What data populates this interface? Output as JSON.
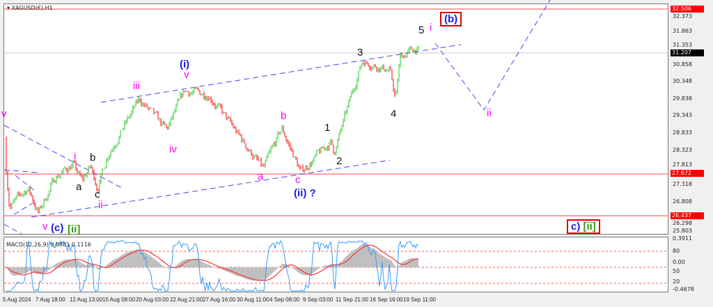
{
  "window": {
    "title": "XAGUSD(€),H1",
    "menu_arrow_icon": "triangle-down-icon"
  },
  "colors": {
    "bull": "#1fc41f",
    "bear": "#ff0000",
    "level_line": "#ff8080",
    "trendline": "#4444ee",
    "macd_hist": "#c0c0c0",
    "macd_signal": "#ff3030",
    "oscillator": "#3399ff",
    "price_tag": "#ff0000",
    "current_tag": "#000000"
  },
  "price_axis": {
    "ticks": [
      "32.373",
      "31.863",
      "31.353",
      "30.858",
      "30.348",
      "29.838",
      "29.343",
      "28.833",
      "28.323",
      "27.813",
      "27.318",
      "26.808",
      "26.298",
      "25.803"
    ],
    "levels": [
      {
        "value": "32.506"
      },
      {
        "value": "27.672"
      },
      {
        "value": "26.437"
      }
    ],
    "current_price": "31.207"
  },
  "time_axis": {
    "ticks": [
      "5 Aug 2024",
      "7 Aug 18:00",
      "12 Aug 13:00",
      "15 Aug 08:00",
      "20 Aug 03:00",
      "22 Aug 21:00",
      "27 Aug 16:00",
      "30 Aug 11:00",
      "4 Sep 08:00",
      "9 Sep 03:00",
      "11 Sep 21:00",
      "16 Sep 16:00",
      "19 Sep 11:00"
    ],
    "tick_times": [
      "2024-08-05T00:00",
      "2024-08-07T18:00",
      "2024-08-12T13:00",
      "2024-08-15T08:00",
      "2024-08-20T03:00",
      "2024-08-22T21:00",
      "2024-08-27T16:00",
      "2024-08-30T11:00",
      "2024-09-04T08:00",
      "2024-09-09T03:00",
      "2024-09-11T21:00",
      "2024-09-16T16:00",
      "2024-09-19T11:00"
    ]
  },
  "macd": {
    "title": "MACD(12,26,9) 0.0881 0.1116",
    "axis": [
      "0.3911",
      "80",
      "0.00",
      "50",
      "20",
      "-0.4678"
    ]
  },
  "annotations": {
    "b_box": "(b)",
    "five": "5",
    "i_top": "i",
    "three": "3",
    "four": "4",
    "one": "1",
    "two": "2",
    "b_mid": "b",
    "a_mid": "a",
    "c_mid": "c",
    "ii_q": "(ii) ?",
    "i_paren": "(i)",
    "v_top": "v",
    "iii": "iii",
    "iv": "iv",
    "i_left": "i",
    "b_left": "b",
    "a_left": "a",
    "c_left": "c",
    "ii_left": "ii",
    "v_bottom": "v",
    "c_paren": "(c)",
    "ii_bracket": "[ii]",
    "ii_proj": "ii",
    "c_box": "c)",
    "ii_box": "[ii]",
    "v_corner": "v"
  },
  "chart_data": {
    "type": "candlestick",
    "title": "XAGUSD(€),H1",
    "ylim": [
      25.803,
      32.506
    ],
    "grid": false,
    "swing_points": [
      {
        "t": "2024-08-05T03:00",
        "price": 28.7
      },
      {
        "t": "2024-08-05T15:00",
        "price": 26.7
      },
      {
        "t": "2024-08-07T04:00",
        "price": 27.25
      },
      {
        "t": "2024-08-08T01:00",
        "price": 26.52
      },
      {
        "t": "2024-08-09T11:00",
        "price": 27.58
      },
      {
        "t": "2024-08-12T22:00",
        "price": 27.95
      },
      {
        "t": "2024-08-13T16:00",
        "price": 27.45
      },
      {
        "t": "2024-08-14T09:00",
        "price": 27.9
      },
      {
        "t": "2024-08-14T23:00",
        "price": 27.25
      },
      {
        "t": "2024-08-15T20:00",
        "price": 28.25
      },
      {
        "t": "2024-08-20T11:00",
        "price": 29.85
      },
      {
        "t": "2024-08-22T18:00",
        "price": 28.95
      },
      {
        "t": "2024-08-26T05:00",
        "price": 30.1
      },
      {
        "t": "2024-08-28T06:00",
        "price": 30.0
      },
      {
        "t": "2024-09-03T19:00",
        "price": 27.8
      },
      {
        "t": "2024-09-05T08:00",
        "price": 29.0
      },
      {
        "t": "2024-09-06T22:00",
        "price": 27.72
      },
      {
        "t": "2024-09-11T10:00",
        "price": 28.6
      },
      {
        "t": "2024-09-11T17:00",
        "price": 28.3
      },
      {
        "t": "2024-09-16T01:00",
        "price": 31.0
      },
      {
        "t": "2024-09-18T08:00",
        "price": 30.7
      },
      {
        "t": "2024-09-18T20:00",
        "price": 29.85
      },
      {
        "t": "2024-09-19T05:00",
        "price": 31.1
      },
      {
        "t": "2024-09-20T13:00",
        "price": 31.35
      },
      {
        "t": "2024-09-20T20:00",
        "price": 31.21
      }
    ]
  }
}
